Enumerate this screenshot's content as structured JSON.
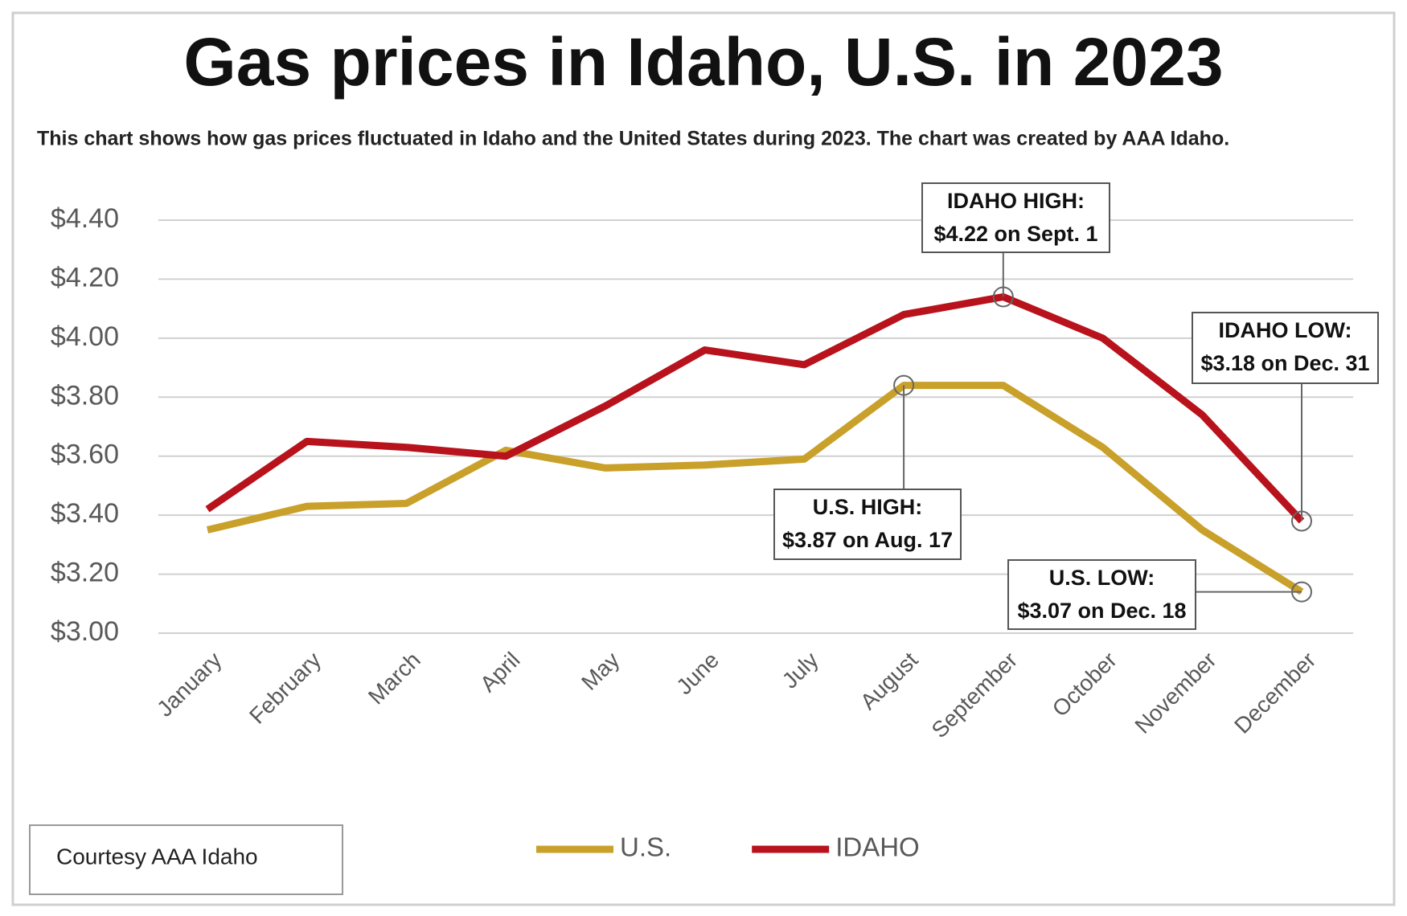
{
  "chart_data": {
    "type": "line",
    "title": "Gas prices in Idaho, U.S. in 2023",
    "subtitle": "This chart shows how gas prices fluctuated in Idaho and the United States during 2023. The chart was created by AAA Idaho.",
    "categories": [
      "January",
      "February",
      "March",
      "April",
      "May",
      "June",
      "July",
      "August",
      "September",
      "October",
      "November",
      "December"
    ],
    "series": [
      {
        "name": "U.S.",
        "color": "#c9a02a",
        "values": [
          3.35,
          3.43,
          3.44,
          3.62,
          3.56,
          3.57,
          3.59,
          3.84,
          3.84,
          3.63,
          3.35,
          3.14
        ]
      },
      {
        "name": "IDAHO",
        "color": "#b8121c",
        "values": [
          3.42,
          3.65,
          3.63,
          3.6,
          3.77,
          3.96,
          3.91,
          4.08,
          4.14,
          4.0,
          3.74,
          3.38
        ]
      }
    ],
    "ylim": [
      3.0,
      4.4
    ],
    "yticks": [
      {
        "value": 3.0,
        "label": "$3.00"
      },
      {
        "value": 3.2,
        "label": "$3.20"
      },
      {
        "value": 3.4,
        "label": "$3.40"
      },
      {
        "value": 3.6,
        "label": "$3.60"
      },
      {
        "value": 3.8,
        "label": "$3.80"
      },
      {
        "value": 4.0,
        "label": "$4.00"
      },
      {
        "value": 4.2,
        "label": "$4.20"
      },
      {
        "value": 4.4,
        "label": "$4.40"
      }
    ],
    "grid": true,
    "legend": "bottom",
    "annotations": [
      {
        "lines": [
          "IDAHO HIGH:",
          "$4.22 on Sept. 1"
        ]
      },
      {
        "lines": [
          "IDAHO LOW:",
          "$3.18 on Dec. 31"
        ]
      },
      {
        "lines": [
          "U.S. HIGH:",
          "$3.87 on Aug. 17"
        ]
      },
      {
        "lines": [
          "U.S. LOW:",
          "$3.07 on Dec. 18"
        ]
      }
    ],
    "source": "Courtesy AAA Idaho"
  }
}
